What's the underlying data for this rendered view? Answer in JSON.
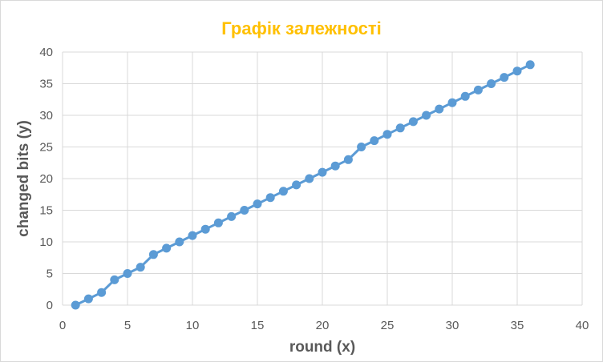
{
  "chart_data": {
    "type": "line",
    "title": "Графік залежності",
    "xlabel": "round (x)",
    "ylabel": "changed bits (y)",
    "xlim": [
      0,
      40
    ],
    "ylim": [
      0,
      40
    ],
    "xticks": [
      0,
      5,
      10,
      15,
      20,
      25,
      30,
      35,
      40
    ],
    "yticks": [
      0,
      5,
      10,
      15,
      20,
      25,
      30,
      35,
      40
    ],
    "grid": true,
    "markers": true,
    "colors": {
      "title": "#FFC000",
      "series": "#5B9BD5",
      "grid": "#D9D9D9",
      "text": "#595959"
    },
    "x": [
      1,
      2,
      3,
      4,
      5,
      6,
      7,
      8,
      9,
      10,
      11,
      12,
      13,
      14,
      15,
      16,
      17,
      18,
      19,
      20,
      21,
      22,
      23,
      24,
      25,
      26,
      27,
      28,
      29,
      30,
      31,
      32,
      33,
      34,
      35,
      36
    ],
    "y": [
      0,
      1,
      2,
      4,
      5,
      6,
      8,
      9,
      10,
      11,
      12,
      13,
      14,
      15,
      16,
      17,
      18,
      19,
      20,
      21,
      22,
      23,
      25,
      26,
      27,
      28,
      29,
      30,
      31,
      32,
      33,
      34,
      35,
      36,
      37,
      38
    ]
  }
}
